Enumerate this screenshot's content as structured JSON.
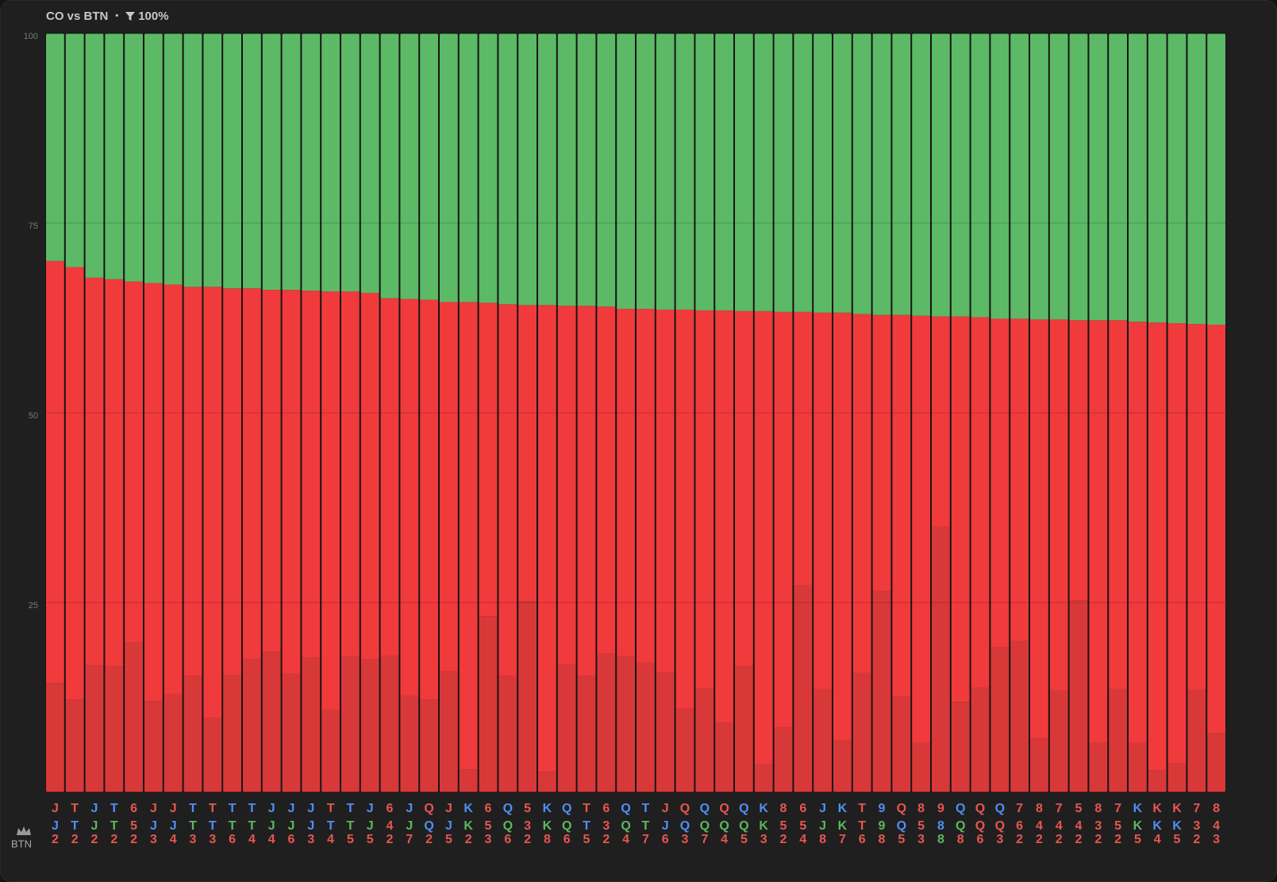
{
  "chart_data": {
    "type": "bar",
    "stacked": true,
    "title": "CO vs BTN",
    "separator": "•",
    "filter": "100%",
    "player": "BTN",
    "ylim": [
      0,
      100
    ],
    "yticks": [
      25,
      50,
      75,
      100
    ],
    "grid": true,
    "suit_colors": {
      "r": "#e8564f",
      "b": "#4f8ff2",
      "g": "#5cb85c"
    },
    "categories": [
      [
        "J",
        "J",
        "2"
      ],
      [
        "T",
        "T",
        "2"
      ],
      [
        "J",
        "J",
        "2"
      ],
      [
        "T",
        "T",
        "2"
      ],
      [
        "6",
        "5",
        "2"
      ],
      [
        "J",
        "J",
        "3"
      ],
      [
        "J",
        "J",
        "4"
      ],
      [
        "T",
        "T",
        "3"
      ],
      [
        "T",
        "T",
        "3"
      ],
      [
        "T",
        "T",
        "6"
      ],
      [
        "T",
        "T",
        "4"
      ],
      [
        "J",
        "J",
        "4"
      ],
      [
        "J",
        "J",
        "6"
      ],
      [
        "J",
        "J",
        "3"
      ],
      [
        "T",
        "T",
        "4"
      ],
      [
        "T",
        "T",
        "5"
      ],
      [
        "J",
        "J",
        "5"
      ],
      [
        "6",
        "4",
        "2"
      ],
      [
        "J",
        "J",
        "7"
      ],
      [
        "Q",
        "Q",
        "2"
      ],
      [
        "J",
        "J",
        "5"
      ],
      [
        "K",
        "K",
        "2"
      ],
      [
        "6",
        "5",
        "3"
      ],
      [
        "Q",
        "Q",
        "6"
      ],
      [
        "5",
        "3",
        "2"
      ],
      [
        "K",
        "K",
        "8"
      ],
      [
        "Q",
        "Q",
        "6"
      ],
      [
        "T",
        "T",
        "5"
      ],
      [
        "6",
        "3",
        "2"
      ],
      [
        "Q",
        "Q",
        "4"
      ],
      [
        "T",
        "T",
        "7"
      ],
      [
        "J",
        "J",
        "6"
      ],
      [
        "Q",
        "Q",
        "3"
      ],
      [
        "Q",
        "Q",
        "7"
      ],
      [
        "Q",
        "Q",
        "4"
      ],
      [
        "Q",
        "Q",
        "5"
      ],
      [
        "K",
        "K",
        "3"
      ],
      [
        "8",
        "5",
        "2"
      ],
      [
        "6",
        "5",
        "4"
      ],
      [
        "J",
        "J",
        "8"
      ],
      [
        "K",
        "K",
        "7"
      ],
      [
        "T",
        "T",
        "6"
      ],
      [
        "9",
        "9",
        "8"
      ],
      [
        "Q",
        "Q",
        "5"
      ],
      [
        "8",
        "5",
        "3"
      ],
      [
        "9",
        "8",
        "8"
      ],
      [
        "Q",
        "Q",
        "8"
      ],
      [
        "Q",
        "Q",
        "6"
      ],
      [
        "Q",
        "Q",
        "3"
      ],
      [
        "7",
        "6",
        "2"
      ],
      [
        "8",
        "4",
        "2"
      ],
      [
        "7",
        "4",
        "2"
      ],
      [
        "5",
        "4",
        "2"
      ],
      [
        "8",
        "3",
        "2"
      ],
      [
        "7",
        "5",
        "2"
      ],
      [
        "K",
        "K",
        "5"
      ],
      [
        "K",
        "K",
        "4"
      ],
      [
        "K",
        "K",
        "5"
      ],
      [
        "7",
        "3",
        "2"
      ],
      [
        "8",
        "4",
        "3"
      ]
    ],
    "card_colors": [
      "rbr",
      "rbr",
      "bgr",
      "bgr",
      "rrr",
      "rbr",
      "rbr",
      "bgr",
      "rbr",
      "bgr",
      "bgr",
      "bgr",
      "bgr",
      "bbr",
      "rbr",
      "bgr",
      "bgr",
      "rrr",
      "bgr",
      "rbr",
      "rbr",
      "bgr",
      "rrr",
      "bgr",
      "rrr",
      "bgr",
      "bgr",
      "rbr",
      "rrr",
      "bgr",
      "bgr",
      "rbr",
      "rbr",
      "bgr",
      "rgr",
      "bgr",
      "bgr",
      "rrr",
      "rrr",
      "bgr",
      "bgr",
      "rrr",
      "bgr",
      "rbr",
      "rrr",
      "rbg",
      "bgr",
      "rrr",
      "brr",
      "rrr",
      "rrr",
      "rrr",
      "rrr",
      "rrr",
      "rrr",
      "bgr",
      "rbr",
      "rbr",
      "rrr",
      "rrr"
    ],
    "series": [
      {
        "color": "#d93838",
        "values": [
          14.4,
          12.2,
          16.7,
          16.6,
          19.7,
          12.0,
          12.9,
          15.3,
          9.8,
          15.4,
          17.5,
          18.5,
          15.6,
          17.7,
          10.8,
          17.9,
          17.5,
          18.0,
          12.7,
          12.2,
          16.0,
          3.0,
          23.2,
          15.3,
          25.2,
          2.7,
          16.8,
          15.3,
          18.3,
          17.9,
          17.1,
          15.9,
          11.0,
          13.7,
          9.2,
          16.6,
          3.7,
          8.5,
          27.3,
          13.6,
          6.9,
          15.7,
          26.5,
          12.6,
          6.5,
          35.0,
          11.9,
          13.8,
          19.1,
          19.9,
          7.1,
          13.4,
          25.3,
          6.5,
          13.6,
          6.5,
          2.9,
          3.8,
          13.5,
          7.8
        ]
      },
      {
        "color": "#f03a3c",
        "values": [
          55.6,
          57.0,
          51.1,
          51.0,
          47.6,
          55.1,
          54.0,
          51.3,
          56.8,
          51.0,
          48.9,
          47.7,
          50.6,
          48.4,
          55.2,
          48.1,
          48.3,
          47.1,
          52.3,
          52.7,
          48.6,
          61.6,
          41.3,
          49.0,
          39.0,
          61.5,
          47.3,
          48.8,
          45.7,
          45.8,
          46.6,
          47.7,
          52.6,
          49.8,
          54.3,
          46.8,
          59.7,
          54.8,
          36.0,
          49.6,
          56.3,
          47.3,
          36.4,
          50.3,
          56.3,
          27.7,
          50.8,
          48.8,
          43.3,
          42.5,
          55.2,
          48.9,
          36.9,
          55.7,
          48.6,
          55.5,
          59.0,
          58.0,
          48.2,
          53.8
        ]
      },
      {
        "color": "#5cb966",
        "values": [
          30.0,
          30.8,
          32.2,
          32.4,
          32.7,
          32.9,
          33.1,
          33.4,
          33.4,
          33.6,
          33.6,
          33.8,
          33.8,
          33.9,
          34.0,
          34.0,
          34.2,
          34.9,
          35.0,
          35.1,
          35.4,
          35.4,
          35.5,
          35.7,
          35.8,
          35.8,
          35.9,
          35.9,
          36.0,
          36.3,
          36.3,
          36.4,
          36.4,
          36.5,
          36.5,
          36.6,
          36.6,
          36.7,
          36.7,
          36.8,
          36.8,
          37.0,
          37.1,
          37.1,
          37.2,
          37.3,
          37.3,
          37.4,
          37.6,
          37.6,
          37.7,
          37.7,
          37.8,
          37.8,
          37.8,
          38.0,
          38.1,
          38.2,
          38.3,
          38.4
        ]
      }
    ]
  }
}
